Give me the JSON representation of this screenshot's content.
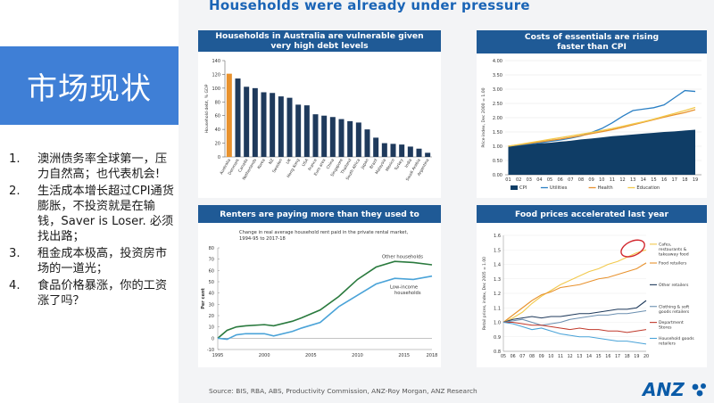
{
  "slide": {
    "title": "市场现状",
    "headline": "Households were already under pressure",
    "points": [
      {
        "num": "1.",
        "text": "澳洲债务率全球第一，压力自然高；也代表机会!"
      },
      {
        "num": "2.",
        "text": "生活成本增长超过CPI通货膨胀，不投资就是在输钱，Saver is Loser. 必须找出路；"
      },
      {
        "num": "3.",
        "text": "租金成本极高，投资房市场的一道光；"
      },
      {
        "num": "4.",
        "text": "食品价格暴涨，你的工资涨了吗？"
      }
    ],
    "source": "Source: BIS, RBA, ABS, Productivity Commission, ANZ-Roy Morgan, ANZ Research",
    "logo": "ANZ",
    "colors": {
      "accent_blue": "#3f7fd6",
      "panel_header": "#1f5a96",
      "headline": "#1a64b6",
      "highlight": "#e8922e"
    }
  },
  "chart_data": [
    {
      "type": "bar",
      "title": "Households in Australia are vulnerable given very high debt levels",
      "ylabel": "Household debt, % GDP",
      "ylim": [
        0,
        140
      ],
      "yticks": [
        0,
        20,
        40,
        60,
        80,
        100,
        120,
        140
      ],
      "categories": [
        "Australia",
        "Denmark",
        "Canada",
        "Netherlands",
        "Korea",
        "NZ",
        "Sweden",
        "UK",
        "Hong Kong",
        "USA",
        "France",
        "Euro area",
        "China",
        "Singapore",
        "Thailand",
        "South Africa",
        "Japan",
        "Brazil",
        "Malaysia",
        "Mexico",
        "Turkey",
        "India",
        "Saudi Arabia",
        "Argentina"
      ],
      "values": [
        121,
        114,
        102,
        100,
        94,
        93,
        88,
        86,
        76,
        75,
        62,
        60,
        58,
        55,
        52,
        50,
        40,
        28,
        20,
        19,
        18,
        15,
        12,
        6
      ],
      "highlight_index": 0,
      "bar_color": "#1f3a5c",
      "highlight_color": "#e8922e"
    },
    {
      "type": "area",
      "title": "Costs of essentials are rising faster than CPI",
      "ylabel": "Price index, Dec 2000 = 1.00",
      "ylim": [
        0.0,
        4.0
      ],
      "yticks": [
        "0.00",
        "0.50",
        "1.00",
        "1.50",
        "2.00",
        "2.50",
        "3.00",
        "3.50",
        "4.00"
      ],
      "categories": [
        "01",
        "02",
        "03",
        "04",
        "05",
        "06",
        "07",
        "08",
        "09",
        "10",
        "11",
        "12",
        "13",
        "14",
        "15",
        "16",
        "17",
        "18",
        "19"
      ],
      "x": [
        2001,
        2002,
        2003,
        2004,
        2005,
        2006,
        2007,
        2008,
        2009,
        2010,
        2011,
        2012,
        2013,
        2014,
        2015,
        2016,
        2017,
        2018,
        2019
      ],
      "series": [
        {
          "name": "CPI",
          "kind": "area",
          "color": "#0f3d66",
          "values": [
            1.0,
            1.04,
            1.07,
            1.1,
            1.12,
            1.16,
            1.19,
            1.24,
            1.27,
            1.31,
            1.35,
            1.38,
            1.41,
            1.44,
            1.47,
            1.5,
            1.52,
            1.55,
            1.58
          ]
        },
        {
          "name": "Utilities",
          "kind": "line",
          "color": "#2a7fc4",
          "values": [
            1.0,
            1.04,
            1.08,
            1.12,
            1.17,
            1.22,
            1.28,
            1.36,
            1.48,
            1.62,
            1.82,
            2.05,
            2.25,
            2.3,
            2.35,
            2.45,
            2.7,
            2.95,
            2.92
          ]
        },
        {
          "name": "Health",
          "kind": "line",
          "color": "#e8922e",
          "values": [
            1.0,
            1.05,
            1.1,
            1.15,
            1.2,
            1.25,
            1.31,
            1.37,
            1.44,
            1.51,
            1.58,
            1.66,
            1.75,
            1.84,
            1.93,
            2.02,
            2.1,
            2.18,
            2.28
          ]
        },
        {
          "name": "Education",
          "kind": "line",
          "color": "#f2c94c",
          "values": [
            1.0,
            1.06,
            1.12,
            1.18,
            1.24,
            1.3,
            1.36,
            1.42,
            1.48,
            1.55,
            1.62,
            1.7,
            1.78,
            1.86,
            1.95,
            2.05,
            2.15,
            2.25,
            2.36
          ]
        }
      ],
      "legend": "bottom"
    },
    {
      "type": "line",
      "title": "Renters are paying more than they used to",
      "subtitle": "Change in real average household rent paid in the private rental market, 1994-95 to 2017-18",
      "ylabel": "Per cent",
      "ylim": [
        -10,
        80
      ],
      "yticks": [
        -10,
        0,
        10,
        20,
        30,
        40,
        50,
        60,
        70,
        80
      ],
      "xticks": [
        "1995",
        "2000",
        "2005",
        "2010",
        "2015",
        "2018"
      ],
      "xlim": [
        1995,
        2018
      ],
      "series": [
        {
          "name": "Other households",
          "color": "#2a7a3e",
          "x": [
            1995,
            1996,
            1997,
            1998,
            2000,
            2001,
            2003,
            2004,
            2006,
            2008,
            2010,
            2012,
            2014,
            2016,
            2018
          ],
          "y": [
            0,
            7,
            10,
            11,
            12,
            11,
            15,
            18,
            25,
            37,
            52,
            63,
            68,
            67,
            65
          ]
        },
        {
          "name": "Low-income households",
          "color": "#4aa3d8",
          "x": [
            1995,
            1996,
            1997,
            1998,
            2000,
            2001,
            2003,
            2004,
            2006,
            2008,
            2010,
            2012,
            2014,
            2016,
            2018
          ],
          "y": [
            0,
            -1,
            3,
            4,
            4,
            2,
            6,
            9,
            14,
            28,
            38,
            48,
            53,
            52,
            55
          ]
        }
      ]
    },
    {
      "type": "line",
      "title": "Food prices accelerated last year",
      "ylabel": "Retail prices, index, Dec 2005 = 1.00",
      "ylim": [
        0.8,
        1.6
      ],
      "yticks": [
        "0.8",
        "0.9",
        "1.0",
        "1.1",
        "1.2",
        "1.3",
        "1.4",
        "1.5",
        "1.6"
      ],
      "xticks": [
        "05",
        "06",
        "07",
        "08",
        "09",
        "10",
        "11",
        "12",
        "13",
        "14",
        "15",
        "16",
        "17",
        "18",
        "19",
        "20"
      ],
      "xlim": [
        2005,
        2020
      ],
      "series": [
        {
          "name": "Cafes, restaurants & takeaway food",
          "color": "#f2c94c",
          "x": [
            2005,
            2006,
            2007,
            2008,
            2009,
            2010,
            2011,
            2012,
            2013,
            2014,
            2015,
            2016,
            2017,
            2018,
            2019,
            2020
          ],
          "y": [
            1.0,
            1.03,
            1.07,
            1.13,
            1.18,
            1.22,
            1.26,
            1.29,
            1.32,
            1.35,
            1.37,
            1.4,
            1.42,
            1.45,
            1.48,
            1.5
          ]
        },
        {
          "name": "Food retailers",
          "color": "#e8922e",
          "x": [
            2005,
            2006,
            2007,
            2008,
            2009,
            2010,
            2011,
            2012,
            2013,
            2014,
            2015,
            2016,
            2017,
            2018,
            2019,
            2020
          ],
          "y": [
            1.0,
            1.05,
            1.1,
            1.15,
            1.19,
            1.21,
            1.24,
            1.25,
            1.26,
            1.28,
            1.3,
            1.31,
            1.33,
            1.35,
            1.37,
            1.41
          ]
        },
        {
          "name": "Other retailers",
          "color": "#1f3a5c",
          "x": [
            2005,
            2006,
            2007,
            2008,
            2009,
            2010,
            2011,
            2012,
            2013,
            2014,
            2015,
            2016,
            2017,
            2018,
            2019,
            2020
          ],
          "y": [
            1.0,
            1.02,
            1.03,
            1.04,
            1.03,
            1.04,
            1.04,
            1.05,
            1.06,
            1.06,
            1.07,
            1.08,
            1.09,
            1.09,
            1.1,
            1.15
          ]
        },
        {
          "name": "Clothing & soft goods retailers",
          "color": "#6b8fb0",
          "x": [
            2005,
            2006,
            2007,
            2008,
            2009,
            2010,
            2011,
            2012,
            2013,
            2014,
            2015,
            2016,
            2017,
            2018,
            2019,
            2020
          ],
          "y": [
            1.0,
            1.01,
            1.02,
            1.0,
            0.98,
            0.99,
            1.0,
            1.02,
            1.03,
            1.04,
            1.05,
            1.05,
            1.06,
            1.06,
            1.07,
            1.08
          ]
        },
        {
          "name": "Department Stores",
          "color": "#c0392b",
          "x": [
            2005,
            2006,
            2007,
            2008,
            2009,
            2010,
            2011,
            2012,
            2013,
            2014,
            2015,
            2016,
            2017,
            2018,
            2019,
            2020
          ],
          "y": [
            1.0,
            1.0,
            0.99,
            0.98,
            0.98,
            0.97,
            0.96,
            0.95,
            0.96,
            0.95,
            0.95,
            0.94,
            0.94,
            0.93,
            0.94,
            0.95
          ]
        },
        {
          "name": "Household goods retailers",
          "color": "#4aa3d8",
          "x": [
            2005,
            2006,
            2007,
            2008,
            2009,
            2010,
            2011,
            2012,
            2013,
            2014,
            2015,
            2016,
            2017,
            2018,
            2019,
            2020
          ],
          "y": [
            1.0,
            0.99,
            0.97,
            0.95,
            0.96,
            0.94,
            0.92,
            0.91,
            0.9,
            0.9,
            0.89,
            0.88,
            0.87,
            0.87,
            0.86,
            0.85
          ]
        }
      ],
      "annotation": "highlight-circle"
    }
  ]
}
